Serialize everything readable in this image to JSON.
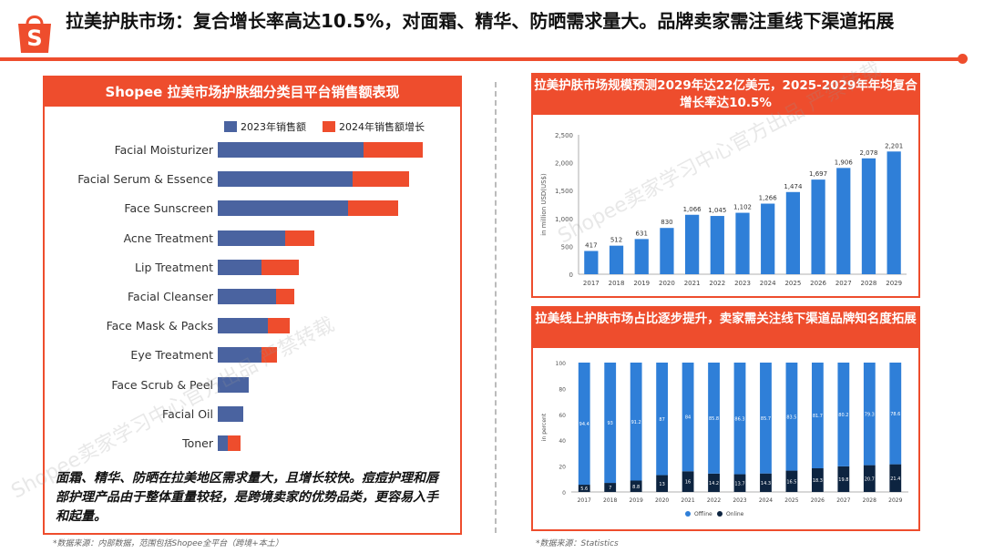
{
  "header": {
    "logo_letter": "S",
    "title": "拉美护肤市场：复合增长率高达10.5%，对面霜、精华、防晒需求量大。品牌卖家需注重线下渠道拓展"
  },
  "watermark": "Shopee卖家学习中心官方出品 严禁转载",
  "panel_left": {
    "title": "Shopee 拉美市场护肤细分类目平台销售额表现",
    "note": "面霜、精华、防晒在拉美地区需求量大，且增长较快。痘痘护理和唇部护理产品由于整体重量较轻，是跨境卖家的优势品类，更容易入手和起量。",
    "source": "*数据来源：内部数据，范围包括Shopee全平台（跨境+本土）"
  },
  "panel_top_right": {
    "title": "拉美护肤市场规模预测2029年达22亿美元，2025-2029年年均复合增长率达10.5%"
  },
  "panel_bottom_right": {
    "title": "拉美线上护肤市场占比逐步提升，卖家需关注线下渠道品牌知名度拓展",
    "source": "*数据来源：Statistics"
  },
  "colors": {
    "accent": "#ee4d2d",
    "blue": "#4a63a0",
    "chart_blue": "#2f7fd8",
    "navy": "#0d2440"
  },
  "chart_data": [
    {
      "type": "bar",
      "orientation": "horizontal",
      "stacked": true,
      "categories": [
        "Facial Moisturizer",
        "Facial Serum & Essence",
        "Face Sunscreen",
        "Acne Treatment",
        "Lip Treatment",
        "Facial Cleanser",
        "Face Mask & Packs",
        "Eye Treatment",
        "Face Scrub & Peel",
        "Facial Oil",
        "Toner"
      ],
      "series": [
        {
          "name": "2023年销售额",
          "color": "#4a63a0",
          "values": [
            160,
            148,
            143,
            74,
            48,
            64,
            55,
            48,
            34,
            28,
            11
          ]
        },
        {
          "name": "2024年销售额增长",
          "color": "#ee4d2d",
          "values": [
            65,
            62,
            55,
            32,
            41,
            20,
            24,
            17,
            0,
            0,
            14
          ]
        }
      ],
      "xlim": [
        0,
        240
      ]
    },
    {
      "type": "bar",
      "categories": [
        "2017",
        "2018",
        "2019",
        "2020",
        "2021",
        "2022",
        "2023",
        "2024",
        "2025",
        "2026",
        "2027",
        "2028",
        "2029"
      ],
      "values": [
        417,
        512,
        631,
        830,
        1066,
        1045,
        1102,
        1266,
        1474,
        1697,
        1906,
        2078,
        2201
      ],
      "data_labels": [
        "417",
        "512",
        "631",
        "830",
        "1,066",
        "1,045",
        "1,102",
        "1,266",
        "1,474",
        "1,697",
        "1,906",
        "2,078",
        "2,201"
      ],
      "ylabel": "in million USD(US$)",
      "ylim": [
        0,
        2500
      ],
      "yticks": [
        "0",
        "500",
        "1,000",
        "1,500",
        "2,000",
        "2,500"
      ]
    },
    {
      "type": "bar",
      "stacked": true,
      "categories": [
        "2017",
        "2018",
        "2019",
        "2020",
        "2021",
        "2022",
        "2023",
        "2024",
        "2025",
        "2026",
        "2027",
        "2028",
        "2029"
      ],
      "series": [
        {
          "name": "Online",
          "color": "#0d2440",
          "values": [
            5.6,
            7,
            8.8,
            13,
            16,
            14.2,
            13.7,
            14.3,
            16.5,
            18.3,
            19.8,
            20.7,
            21.4
          ]
        },
        {
          "name": "Offline",
          "color": "#2f7fd8",
          "values": [
            94.4,
            93,
            91.2,
            87,
            84,
            85.8,
            86.3,
            85.7,
            83.5,
            81.7,
            80.2,
            79.3,
            78.6
          ]
        }
      ],
      "ylabel": "in percent",
      "ylim": [
        0,
        100
      ],
      "yticks": [
        "0",
        "20",
        "40",
        "60",
        "80",
        "100"
      ]
    }
  ]
}
